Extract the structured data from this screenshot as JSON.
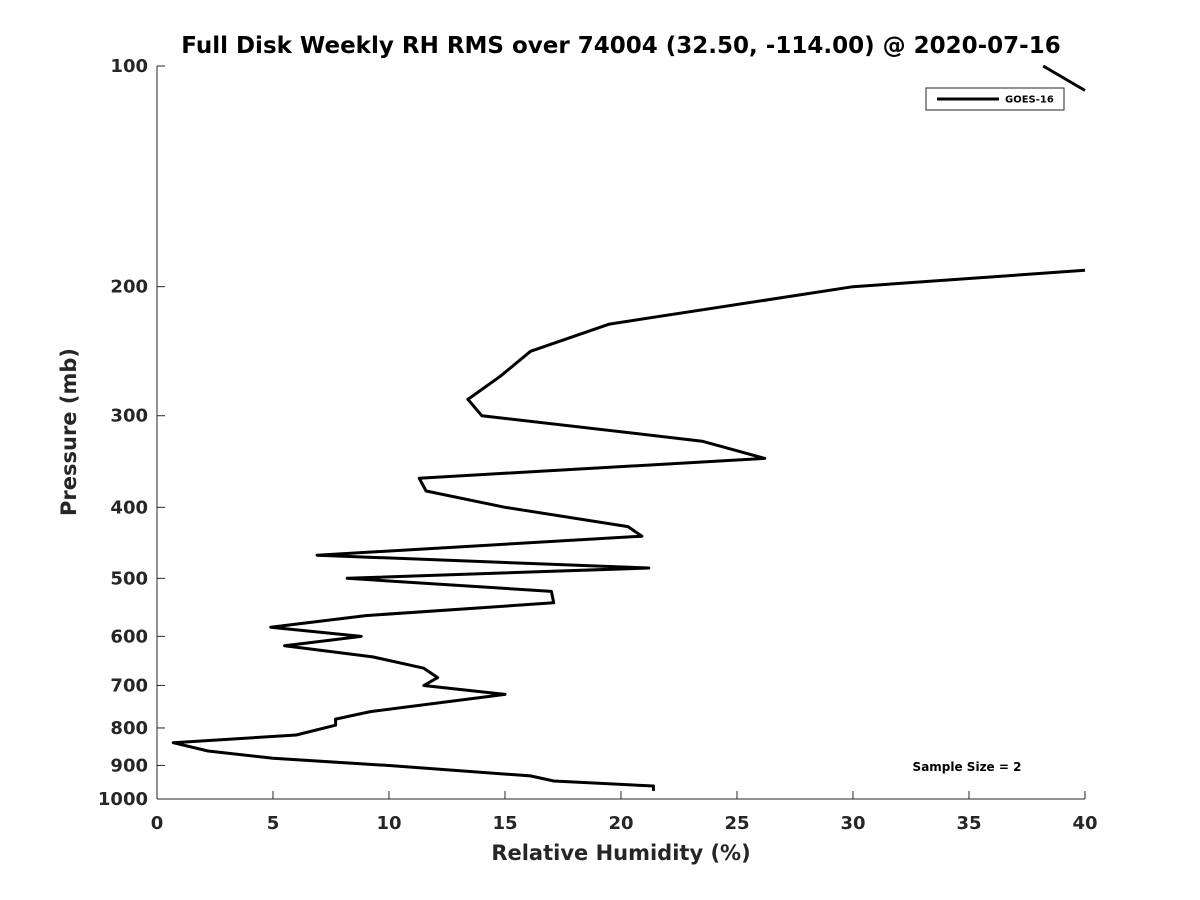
{
  "chart_data": {
    "type": "line",
    "title": "Full Disk Weekly RH RMS over 74004 (32.50, -114.00) @ 2020-07-16",
    "xlabel": "Relative Humidity (%)",
    "ylabel": "Pressure (mb)",
    "xlim": [
      0,
      40
    ],
    "ylim": [
      100,
      1000
    ],
    "yscale": "log",
    "y_reversed": true,
    "xticks": [
      0,
      5,
      10,
      15,
      20,
      25,
      30,
      35,
      40
    ],
    "yticks": [
      100,
      200,
      300,
      400,
      500,
      600,
      700,
      800,
      900,
      1000
    ],
    "grid": false,
    "legend": "top-right",
    "series": [
      {
        "name": "GOES-16",
        "color": "#000000",
        "points": [
          [
            40.0,
            190
          ],
          [
            30.0,
            200
          ],
          [
            19.5,
            225
          ],
          [
            16.1,
            245
          ],
          [
            14.8,
            265
          ],
          [
            13.4,
            285
          ],
          [
            14.0,
            300
          ],
          [
            23.5,
            325
          ],
          [
            26.2,
            343
          ],
          [
            11.3,
            365
          ],
          [
            11.6,
            380
          ],
          [
            15.0,
            400
          ],
          [
            20.3,
            425
          ],
          [
            20.9,
            438
          ],
          [
            6.9,
            465
          ],
          [
            21.2,
            484
          ],
          [
            8.2,
            500
          ],
          [
            17.0,
            521
          ],
          [
            17.1,
            540
          ],
          [
            9.0,
            562
          ],
          [
            4.9,
            583
          ],
          [
            8.8,
            600
          ],
          [
            5.5,
            618
          ],
          [
            9.3,
            640
          ],
          [
            11.5,
            663
          ],
          [
            12.1,
            683
          ],
          [
            11.5,
            700
          ],
          [
            15.0,
            720
          ],
          [
            9.2,
            760
          ],
          [
            7.7,
            778
          ],
          [
            7.7,
            793
          ],
          [
            6.0,
            818
          ],
          [
            0.7,
            838
          ],
          [
            2.2,
            860
          ],
          [
            5.0,
            880
          ],
          [
            10.0,
            900
          ],
          [
            16.1,
            930
          ],
          [
            17.1,
            945
          ],
          [
            21.4,
            960
          ],
          [
            21.4,
            975
          ]
        ]
      },
      {
        "name": "",
        "color": "#000000",
        "points": [
          [
            38.2,
            100
          ],
          [
            40.0,
            108
          ]
        ]
      }
    ],
    "legend_entries": [
      "GOES-16"
    ],
    "annotations": [
      "Sample Size = 2"
    ]
  }
}
